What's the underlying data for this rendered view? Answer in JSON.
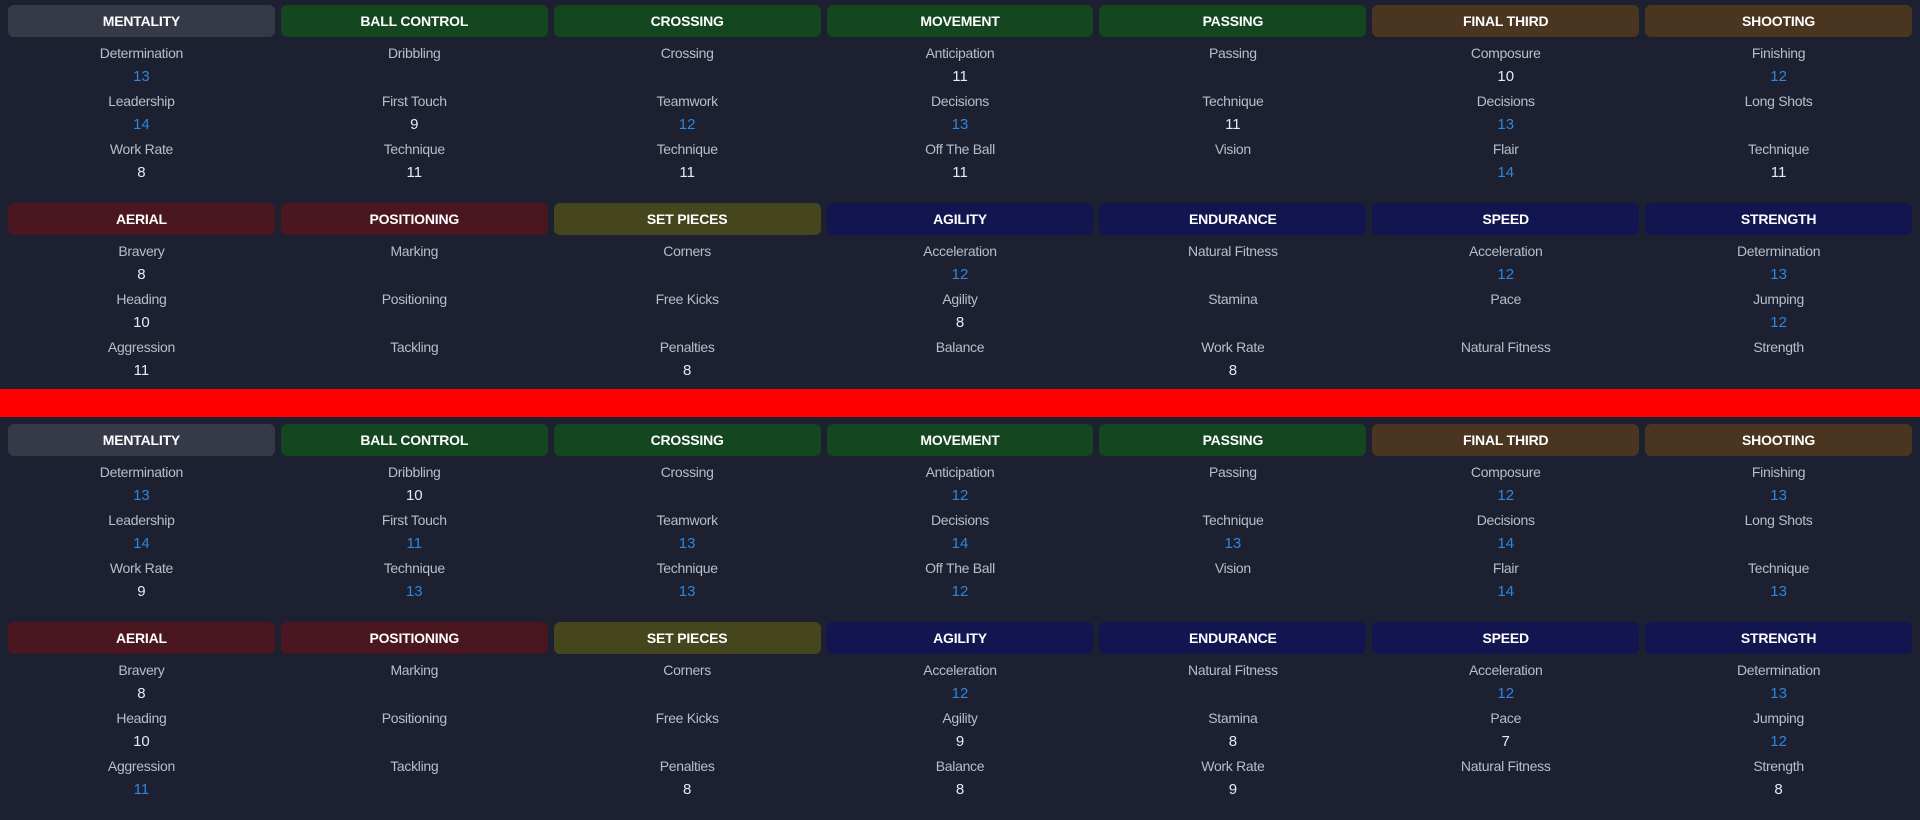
{
  "colors": {
    "background": "#1c2030",
    "divider": "#ff0000",
    "value_normal": "#e4ebf5",
    "value_highlight": "#2f86dc",
    "mentality": "#363a47",
    "green": "#14471f",
    "brown": "#4a3520",
    "maroon": "#4a1620",
    "olive": "#45461d",
    "navy": "#121550"
  },
  "panels": [
    {
      "rows": [
        [
          {
            "title": "MENTALITY",
            "color": "mentality",
            "attributes": [
              {
                "label": "Determination",
                "value": "13",
                "highlight": true
              },
              {
                "label": "Leadership",
                "value": "14",
                "highlight": true
              },
              {
                "label": "Work Rate",
                "value": "8",
                "highlight": false
              }
            ]
          },
          {
            "title": "BALL CONTROL",
            "color": "green",
            "attributes": [
              {
                "label": "Dribbling",
                "value": "",
                "highlight": false
              },
              {
                "label": "First Touch",
                "value": "9",
                "highlight": false
              },
              {
                "label": "Technique",
                "value": "11",
                "highlight": false
              }
            ]
          },
          {
            "title": "CROSSING",
            "color": "green",
            "attributes": [
              {
                "label": "Crossing",
                "value": "",
                "highlight": false
              },
              {
                "label": "Teamwork",
                "value": "12",
                "highlight": true
              },
              {
                "label": "Technique",
                "value": "11",
                "highlight": false
              }
            ]
          },
          {
            "title": "MOVEMENT",
            "color": "green",
            "attributes": [
              {
                "label": "Anticipation",
                "value": "11",
                "highlight": false
              },
              {
                "label": "Decisions",
                "value": "13",
                "highlight": true
              },
              {
                "label": "Off The Ball",
                "value": "11",
                "highlight": false
              }
            ]
          },
          {
            "title": "PASSING",
            "color": "green",
            "attributes": [
              {
                "label": "Passing",
                "value": "",
                "highlight": false
              },
              {
                "label": "Technique",
                "value": "11",
                "highlight": false
              },
              {
                "label": "Vision",
                "value": "",
                "highlight": false
              }
            ]
          },
          {
            "title": "FINAL THIRD",
            "color": "brown",
            "attributes": [
              {
                "label": "Composure",
                "value": "10",
                "highlight": false
              },
              {
                "label": "Decisions",
                "value": "13",
                "highlight": true
              },
              {
                "label": "Flair",
                "value": "14",
                "highlight": true
              }
            ]
          },
          {
            "title": "SHOOTING",
            "color": "brown",
            "attributes": [
              {
                "label": "Finishing",
                "value": "12",
                "highlight": true
              },
              {
                "label": "Long Shots",
                "value": "",
                "highlight": false
              },
              {
                "label": "Technique",
                "value": "11",
                "highlight": false
              }
            ]
          }
        ],
        [
          {
            "title": "AERIAL",
            "color": "maroon",
            "attributes": [
              {
                "label": "Bravery",
                "value": "8",
                "highlight": false
              },
              {
                "label": "Heading",
                "value": "10",
                "highlight": false
              },
              {
                "label": "Aggression",
                "value": "11",
                "highlight": false
              }
            ]
          },
          {
            "title": "POSITIONING",
            "color": "maroon",
            "attributes": [
              {
                "label": "Marking",
                "value": "",
                "highlight": false
              },
              {
                "label": "Positioning",
                "value": "",
                "highlight": false
              },
              {
                "label": "Tackling",
                "value": "",
                "highlight": false
              }
            ]
          },
          {
            "title": "SET PIECES",
            "color": "olive",
            "attributes": [
              {
                "label": "Corners",
                "value": "",
                "highlight": false
              },
              {
                "label": "Free Kicks",
                "value": "",
                "highlight": false
              },
              {
                "label": "Penalties",
                "value": "8",
                "highlight": false
              }
            ]
          },
          {
            "title": "AGILITY",
            "color": "navy",
            "attributes": [
              {
                "label": "Acceleration",
                "value": "12",
                "highlight": true
              },
              {
                "label": "Agility",
                "value": "8",
                "highlight": false
              },
              {
                "label": "Balance",
                "value": "",
                "highlight": false
              }
            ]
          },
          {
            "title": "ENDURANCE",
            "color": "navy",
            "attributes": [
              {
                "label": "Natural Fitness",
                "value": "",
                "highlight": false
              },
              {
                "label": "Stamina",
                "value": "",
                "highlight": false
              },
              {
                "label": "Work Rate",
                "value": "8",
                "highlight": false
              }
            ]
          },
          {
            "title": "SPEED",
            "color": "navy",
            "attributes": [
              {
                "label": "Acceleration",
                "value": "12",
                "highlight": true
              },
              {
                "label": "Pace",
                "value": "",
                "highlight": false
              },
              {
                "label": "Natural Fitness",
                "value": "",
                "highlight": false
              }
            ]
          },
          {
            "title": "STRENGTH",
            "color": "navy",
            "attributes": [
              {
                "label": "Determination",
                "value": "13",
                "highlight": true
              },
              {
                "label": "Jumping",
                "value": "12",
                "highlight": true
              },
              {
                "label": "Strength",
                "value": "",
                "highlight": false
              }
            ]
          }
        ]
      ]
    },
    {
      "rows": [
        [
          {
            "title": "MENTALITY",
            "color": "mentality",
            "attributes": [
              {
                "label": "Determination",
                "value": "13",
                "highlight": true
              },
              {
                "label": "Leadership",
                "value": "14",
                "highlight": true
              },
              {
                "label": "Work Rate",
                "value": "9",
                "highlight": false
              }
            ]
          },
          {
            "title": "BALL CONTROL",
            "color": "green",
            "attributes": [
              {
                "label": "Dribbling",
                "value": "10",
                "highlight": false
              },
              {
                "label": "First Touch",
                "value": "11",
                "highlight": true
              },
              {
                "label": "Technique",
                "value": "13",
                "highlight": true
              }
            ]
          },
          {
            "title": "CROSSING",
            "color": "green",
            "attributes": [
              {
                "label": "Crossing",
                "value": "",
                "highlight": false
              },
              {
                "label": "Teamwork",
                "value": "13",
                "highlight": true
              },
              {
                "label": "Technique",
                "value": "13",
                "highlight": true
              }
            ]
          },
          {
            "title": "MOVEMENT",
            "color": "green",
            "attributes": [
              {
                "label": "Anticipation",
                "value": "12",
                "highlight": true
              },
              {
                "label": "Decisions",
                "value": "14",
                "highlight": true
              },
              {
                "label": "Off The Ball",
                "value": "12",
                "highlight": true
              }
            ]
          },
          {
            "title": "PASSING",
            "color": "green",
            "attributes": [
              {
                "label": "Passing",
                "value": "",
                "highlight": false
              },
              {
                "label": "Technique",
                "value": "13",
                "highlight": true
              },
              {
                "label": "Vision",
                "value": "",
                "highlight": false
              }
            ]
          },
          {
            "title": "FINAL THIRD",
            "color": "brown",
            "attributes": [
              {
                "label": "Composure",
                "value": "12",
                "highlight": true
              },
              {
                "label": "Decisions",
                "value": "14",
                "highlight": true
              },
              {
                "label": "Flair",
                "value": "14",
                "highlight": true
              }
            ]
          },
          {
            "title": "SHOOTING",
            "color": "brown",
            "attributes": [
              {
                "label": "Finishing",
                "value": "13",
                "highlight": true
              },
              {
                "label": "Long Shots",
                "value": "",
                "highlight": false
              },
              {
                "label": "Technique",
                "value": "13",
                "highlight": true
              }
            ]
          }
        ],
        [
          {
            "title": "AERIAL",
            "color": "maroon",
            "attributes": [
              {
                "label": "Bravery",
                "value": "8",
                "highlight": false
              },
              {
                "label": "Heading",
                "value": "10",
                "highlight": false
              },
              {
                "label": "Aggression",
                "value": "11",
                "highlight": true
              }
            ]
          },
          {
            "title": "POSITIONING",
            "color": "maroon",
            "attributes": [
              {
                "label": "Marking",
                "value": "",
                "highlight": false
              },
              {
                "label": "Positioning",
                "value": "",
                "highlight": false
              },
              {
                "label": "Tackling",
                "value": "",
                "highlight": false
              }
            ]
          },
          {
            "title": "SET PIECES",
            "color": "olive",
            "attributes": [
              {
                "label": "Corners",
                "value": "",
                "highlight": false
              },
              {
                "label": "Free Kicks",
                "value": "",
                "highlight": false
              },
              {
                "label": "Penalties",
                "value": "8",
                "highlight": false
              }
            ]
          },
          {
            "title": "AGILITY",
            "color": "navy",
            "attributes": [
              {
                "label": "Acceleration",
                "value": "12",
                "highlight": true
              },
              {
                "label": "Agility",
                "value": "9",
                "highlight": false
              },
              {
                "label": "Balance",
                "value": "8",
                "highlight": false
              }
            ]
          },
          {
            "title": "ENDURANCE",
            "color": "navy",
            "attributes": [
              {
                "label": "Natural Fitness",
                "value": "",
                "highlight": false
              },
              {
                "label": "Stamina",
                "value": "8",
                "highlight": false
              },
              {
                "label": "Work Rate",
                "value": "9",
                "highlight": false
              }
            ]
          },
          {
            "title": "SPEED",
            "color": "navy",
            "attributes": [
              {
                "label": "Acceleration",
                "value": "12",
                "highlight": true
              },
              {
                "label": "Pace",
                "value": "7",
                "highlight": false
              },
              {
                "label": "Natural Fitness",
                "value": "",
                "highlight": false
              }
            ]
          },
          {
            "title": "STRENGTH",
            "color": "navy",
            "attributes": [
              {
                "label": "Determination",
                "value": "13",
                "highlight": true
              },
              {
                "label": "Jumping",
                "value": "12",
                "highlight": true
              },
              {
                "label": "Strength",
                "value": "8",
                "highlight": false
              }
            ]
          }
        ]
      ]
    }
  ]
}
